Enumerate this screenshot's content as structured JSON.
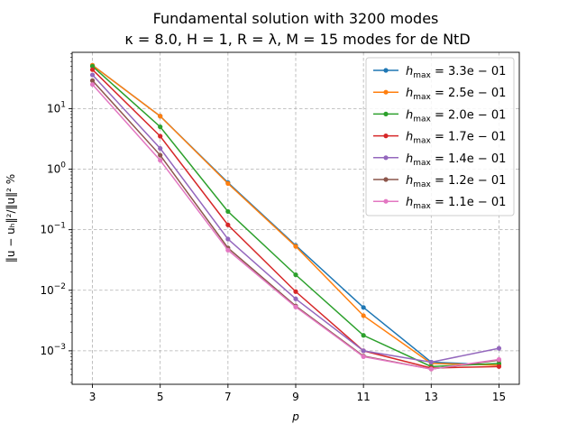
{
  "chart_data": {
    "type": "line",
    "title_line1": "Fundamental solution with 3200 modes",
    "title_line2": "κ = 8.0, H = 1, R = λ, M = 15 modes for de NtD",
    "xlabel": "p",
    "ylabel": "‖u − uₕ‖²/‖u‖² %",
    "x": [
      3,
      5,
      7,
      9,
      11,
      13,
      15
    ],
    "xlim": [
      2.4,
      15.6
    ],
    "ylim": [
      0.00028,
      85
    ],
    "yscale": "log",
    "grid": true,
    "legend_position": "top-right",
    "y_ticks": [
      {
        "value": 0.001,
        "base": "10",
        "exp": "−3"
      },
      {
        "value": 0.01,
        "base": "10",
        "exp": "−2"
      },
      {
        "value": 0.1,
        "base": "10",
        "exp": "−1"
      },
      {
        "value": 1,
        "base": "10",
        "exp": "0"
      },
      {
        "value": 10,
        "base": "10",
        "exp": "1"
      }
    ],
    "series": [
      {
        "name": "hmax = 3.3e−01",
        "label_sub": "max",
        "label_val": " = 3.3e − 01",
        "color": "#1f77b4",
        "values": [
          52,
          7.5,
          0.6,
          0.055,
          0.0052,
          0.00065,
          0.00058
        ]
      },
      {
        "name": "hmax = 2.5e−01",
        "label_sub": "max",
        "label_val": " = 2.5e − 01",
        "color": "#ff7f0e",
        "values": [
          52,
          7.5,
          0.58,
          0.053,
          0.0038,
          0.00062,
          0.00058
        ]
      },
      {
        "name": "hmax = 2.0e−01",
        "label_sub": "max",
        "label_val": " = 2.0e − 01",
        "color": "#2ca02c",
        "values": [
          50,
          5.0,
          0.2,
          0.018,
          0.0018,
          0.00055,
          0.00062
        ]
      },
      {
        "name": "hmax = 1.7e−01",
        "label_sub": "max",
        "label_val": " = 1.7e − 01",
        "color": "#d62728",
        "values": [
          44,
          3.5,
          0.12,
          0.0095,
          0.001,
          0.00052,
          0.00055
        ]
      },
      {
        "name": "hmax = 1.4e−01",
        "label_sub": "max",
        "label_val": " = 1.4e − 01",
        "color": "#9467bd",
        "values": [
          36,
          2.2,
          0.07,
          0.0072,
          0.001,
          0.00065,
          0.0011
        ]
      },
      {
        "name": "hmax = 1.2e−01",
        "label_sub": "max",
        "label_val": " = 1.2e − 01",
        "color": "#8c564b",
        "values": [
          29,
          1.7,
          0.05,
          0.0055,
          0.00082,
          0.0005,
          0.0007
        ]
      },
      {
        "name": "hmax = 1.1e−01",
        "label_sub": "max",
        "label_val": " = 1.1e − 01",
        "color": "#e377c2",
        "values": [
          25,
          1.4,
          0.046,
          0.0053,
          0.0008,
          0.0005,
          0.00072
        ]
      }
    ]
  }
}
